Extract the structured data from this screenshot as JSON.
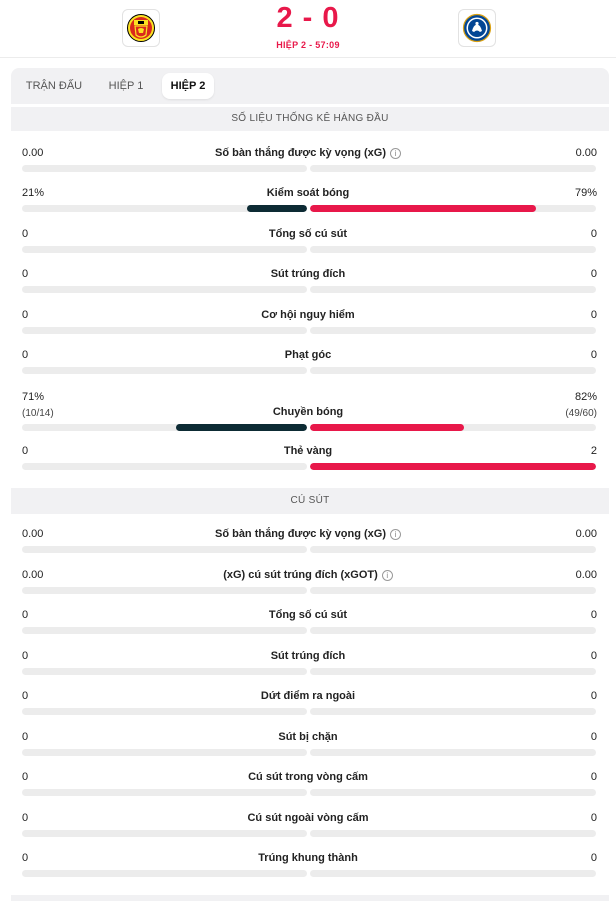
{
  "header": {
    "home_logo": "manchester-united-crest",
    "away_logo": "chelsea-crest",
    "score": "2 - 0",
    "period_time": "HIỆP 2 - 57:09",
    "accent_color": "#e8184a"
  },
  "tabs": [
    {
      "label": "TRẬN ĐẤU",
      "active": false
    },
    {
      "label": "HIỆP 1",
      "active": false
    },
    {
      "label": "HIỆP 2",
      "active": true
    }
  ],
  "sections": [
    {
      "title": "SỐ LIỆU THỐNG KÊ HÀNG ĐẦU",
      "rows": [
        {
          "label": "Số bàn thắng được kỳ vọng (xG)",
          "info": true,
          "home": "0.00",
          "away": "0.00",
          "home_share": 0,
          "away_share": 0
        },
        {
          "label": "Kiểm soát bóng",
          "home": "21%",
          "away": "79%",
          "home_share": 0.21,
          "away_share": 0.79
        },
        {
          "label": "Tổng số cú sút",
          "home": "0",
          "away": "0",
          "home_share": 0,
          "away_share": 0
        },
        {
          "label": "Sút trúng đích",
          "home": "0",
          "away": "0",
          "home_share": 0,
          "away_share": 0
        },
        {
          "label": "Cơ hội nguy hiểm",
          "home": "0",
          "away": "0",
          "home_share": 0,
          "away_share": 0
        },
        {
          "label": "Phạt góc",
          "home": "0",
          "away": "0",
          "home_share": 0,
          "away_share": 0
        },
        {
          "label": "Chuyền bóng",
          "home": "71%",
          "away": "82%",
          "home_sub": "(10/14)",
          "away_sub": "(49/60)",
          "home_share": 0.46,
          "away_share": 0.54
        },
        {
          "label": "Thẻ vàng",
          "home": "0",
          "away": "2",
          "home_share": 0,
          "away_share": 1
        }
      ]
    },
    {
      "title": "CÚ SÚT",
      "rows": [
        {
          "label": "Số bàn thắng được kỳ vọng (xG)",
          "info": true,
          "home": "0.00",
          "away": "0.00",
          "home_share": 0,
          "away_share": 0
        },
        {
          "label": "(xG) cú sút trúng đích (xGOT)",
          "info": true,
          "home": "0.00",
          "away": "0.00",
          "home_share": 0,
          "away_share": 0
        },
        {
          "label": "Tổng số cú sút",
          "home": "0",
          "away": "0",
          "home_share": 0,
          "away_share": 0
        },
        {
          "label": "Sút trúng đích",
          "home": "0",
          "away": "0",
          "home_share": 0,
          "away_share": 0
        },
        {
          "label": "Dứt điểm ra ngoài",
          "home": "0",
          "away": "0",
          "home_share": 0,
          "away_share": 0
        },
        {
          "label": "Sút bị chặn",
          "home": "0",
          "away": "0",
          "home_share": 0,
          "away_share": 0
        },
        {
          "label": "Cú sút trong vòng cấm",
          "home": "0",
          "away": "0",
          "home_share": 0,
          "away_share": 0
        },
        {
          "label": "Cú sút ngoài vòng cấm",
          "home": "0",
          "away": "0",
          "home_share": 0,
          "away_share": 0
        },
        {
          "label": "Trúng khung thành",
          "home": "0",
          "away": "0",
          "home_share": 0,
          "away_share": 0
        }
      ]
    }
  ]
}
